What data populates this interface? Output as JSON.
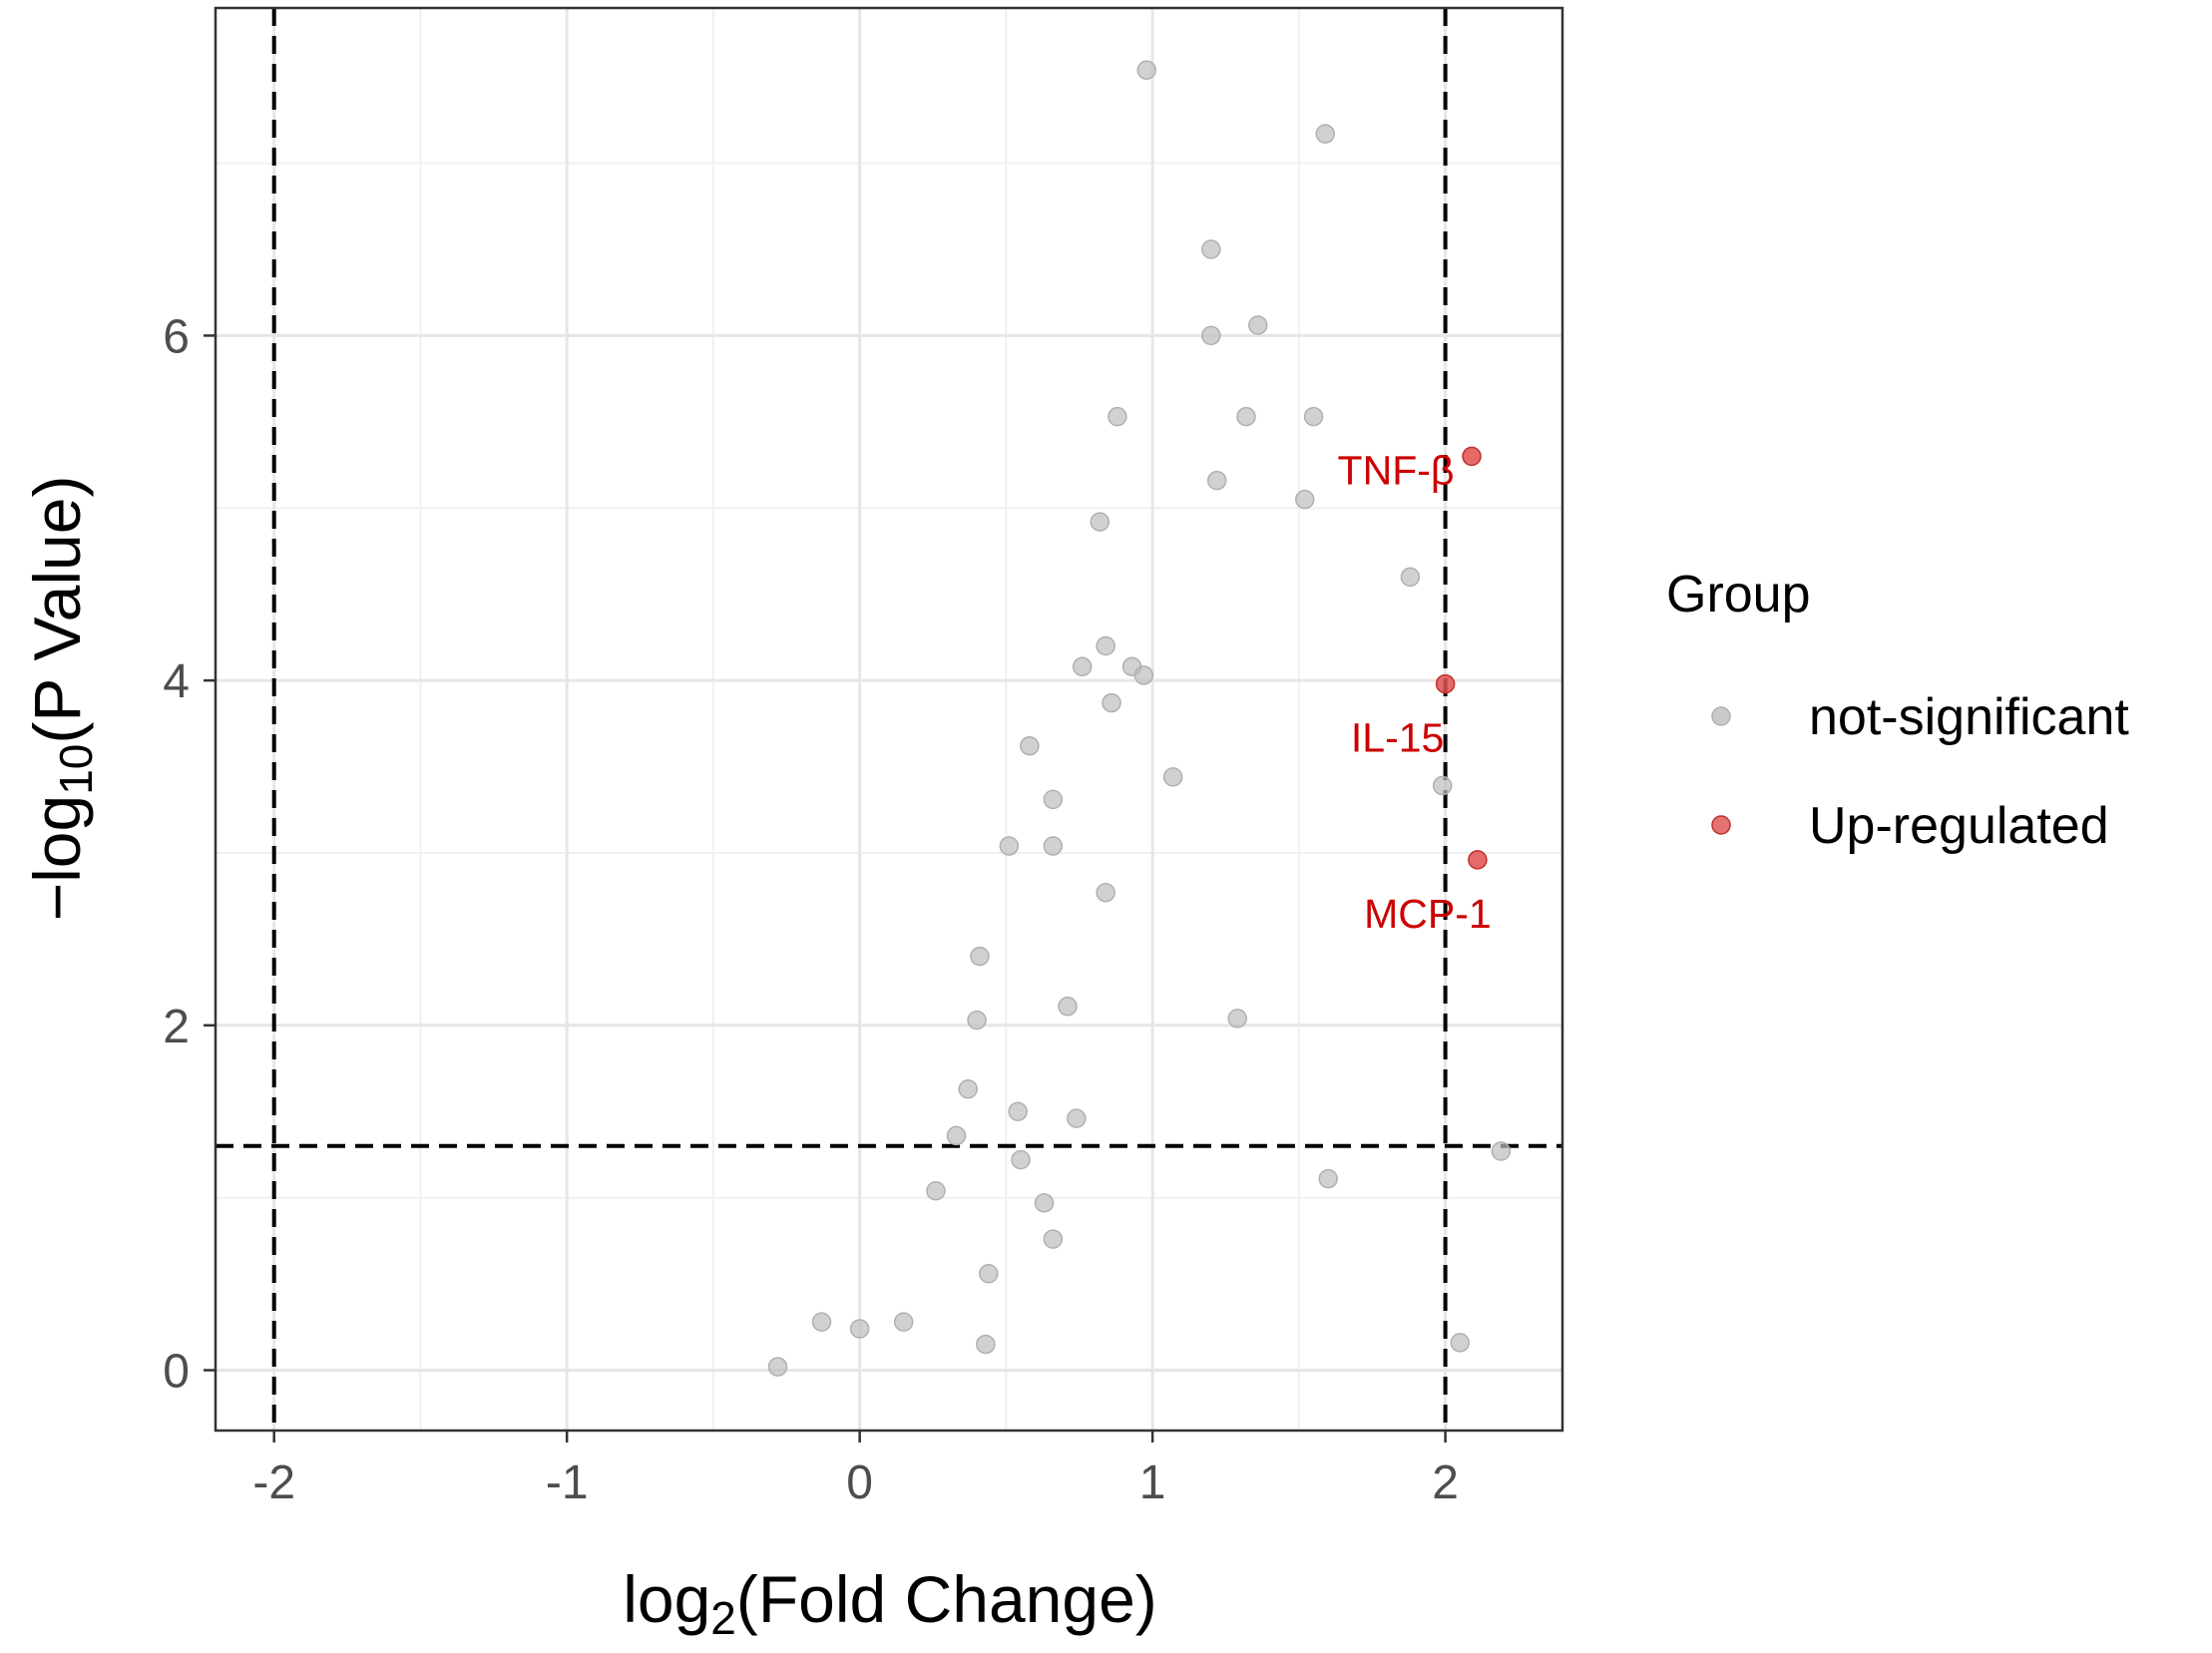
{
  "chart_data": {
    "type": "scatter",
    "xlabel": "log2(Fold Change)",
    "ylabel": "−log10(P Value)",
    "xlim": [
      -2.2,
      2.4
    ],
    "ylim": [
      -0.35,
      7.9
    ],
    "x_ticks": [
      -2,
      -1,
      0,
      1,
      2
    ],
    "y_ticks": [
      0,
      2,
      4,
      6
    ],
    "x_tick_labels": [
      "-2",
      "-1",
      "0",
      "1",
      "2"
    ],
    "y_tick_labels": [
      "0",
      "2",
      "4",
      "6"
    ],
    "grid": true,
    "thresholds": {
      "x": [
        -2,
        2
      ],
      "y": 1.3
    },
    "legend": {
      "title": "Group",
      "position": "right",
      "entries": [
        {
          "label": "not-significant",
          "color": "#bdbdbd"
        },
        {
          "label": "Up-regulated",
          "color": "#e05050"
        }
      ]
    },
    "colors": {
      "not-significant": "#bdbdbd",
      "Up-regulated": "#e05050",
      "label": "#cc0000"
    },
    "series": [
      {
        "name": "not-significant",
        "points": [
          [
            0.98,
            7.54
          ],
          [
            1.59,
            7.17
          ],
          [
            1.2,
            6.5
          ],
          [
            1.2,
            6.0
          ],
          [
            1.36,
            6.06
          ],
          [
            0.88,
            5.53
          ],
          [
            1.32,
            5.53
          ],
          [
            1.55,
            5.53
          ],
          [
            1.22,
            5.16
          ],
          [
            1.52,
            5.05
          ],
          [
            0.82,
            4.92
          ],
          [
            1.88,
            4.6
          ],
          [
            0.84,
            4.2
          ],
          [
            0.76,
            4.08
          ],
          [
            0.93,
            4.08
          ],
          [
            0.97,
            4.03
          ],
          [
            0.86,
            3.87
          ],
          [
            0.58,
            3.62
          ],
          [
            1.07,
            3.44
          ],
          [
            1.99,
            3.39
          ],
          [
            0.66,
            3.31
          ],
          [
            0.51,
            3.04
          ],
          [
            0.66,
            3.04
          ],
          [
            0.84,
            2.77
          ],
          [
            0.41,
            2.4
          ],
          [
            0.71,
            2.11
          ],
          [
            0.4,
            2.03
          ],
          [
            1.29,
            2.04
          ],
          [
            0.37,
            1.63
          ],
          [
            0.54,
            1.5
          ],
          [
            0.74,
            1.46
          ],
          [
            0.33,
            1.36
          ],
          [
            0.55,
            1.22
          ],
          [
            2.19,
            1.27
          ],
          [
            1.6,
            1.11
          ],
          [
            0.26,
            1.04
          ],
          [
            0.63,
            0.97
          ],
          [
            0.66,
            0.76
          ],
          [
            0.44,
            0.56
          ],
          [
            -0.13,
            0.28
          ],
          [
            0.0,
            0.24
          ],
          [
            0.15,
            0.28
          ],
          [
            0.43,
            0.15
          ],
          [
            2.05,
            0.16
          ],
          [
            -0.28,
            0.02
          ]
        ]
      },
      {
        "name": "Up-regulated",
        "points": [
          [
            2.09,
            5.3
          ],
          [
            2.0,
            3.98
          ],
          [
            2.11,
            2.96
          ]
        ],
        "labels": [
          "TNF-β",
          "IL-15",
          "MCP-1"
        ]
      }
    ]
  }
}
